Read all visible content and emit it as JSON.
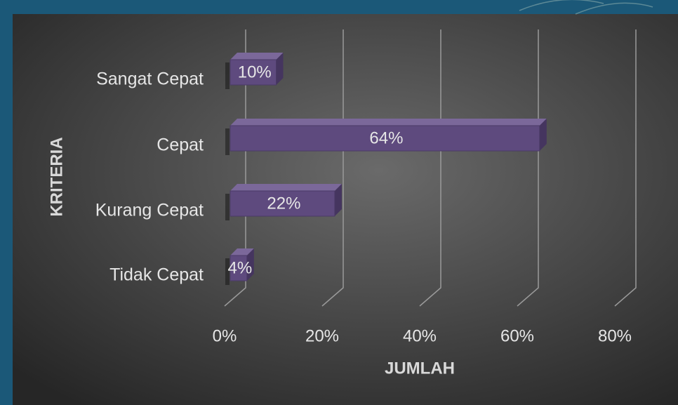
{
  "chart_data": {
    "type": "bar3d_horizontal",
    "categories": [
      "Sangat Cepat",
      "Cepat",
      "Kurang Cepat",
      "Tidak Cepat"
    ],
    "values": [
      10,
      64,
      22,
      4
    ],
    "value_labels": [
      "10%",
      "64%",
      "22%",
      "4%"
    ],
    "color": "#5e4a7e",
    "xlim": [
      0,
      80
    ],
    "xticks": [
      {
        "value": 0,
        "label": "0%"
      },
      {
        "value": 20,
        "label": "20%"
      },
      {
        "value": 40,
        "label": "40%"
      },
      {
        "value": 60,
        "label": "60%"
      },
      {
        "value": 80,
        "label": "80%"
      }
    ],
    "grid": true,
    "x_label": "JUMLAH",
    "y_label": "KRITERIA"
  }
}
